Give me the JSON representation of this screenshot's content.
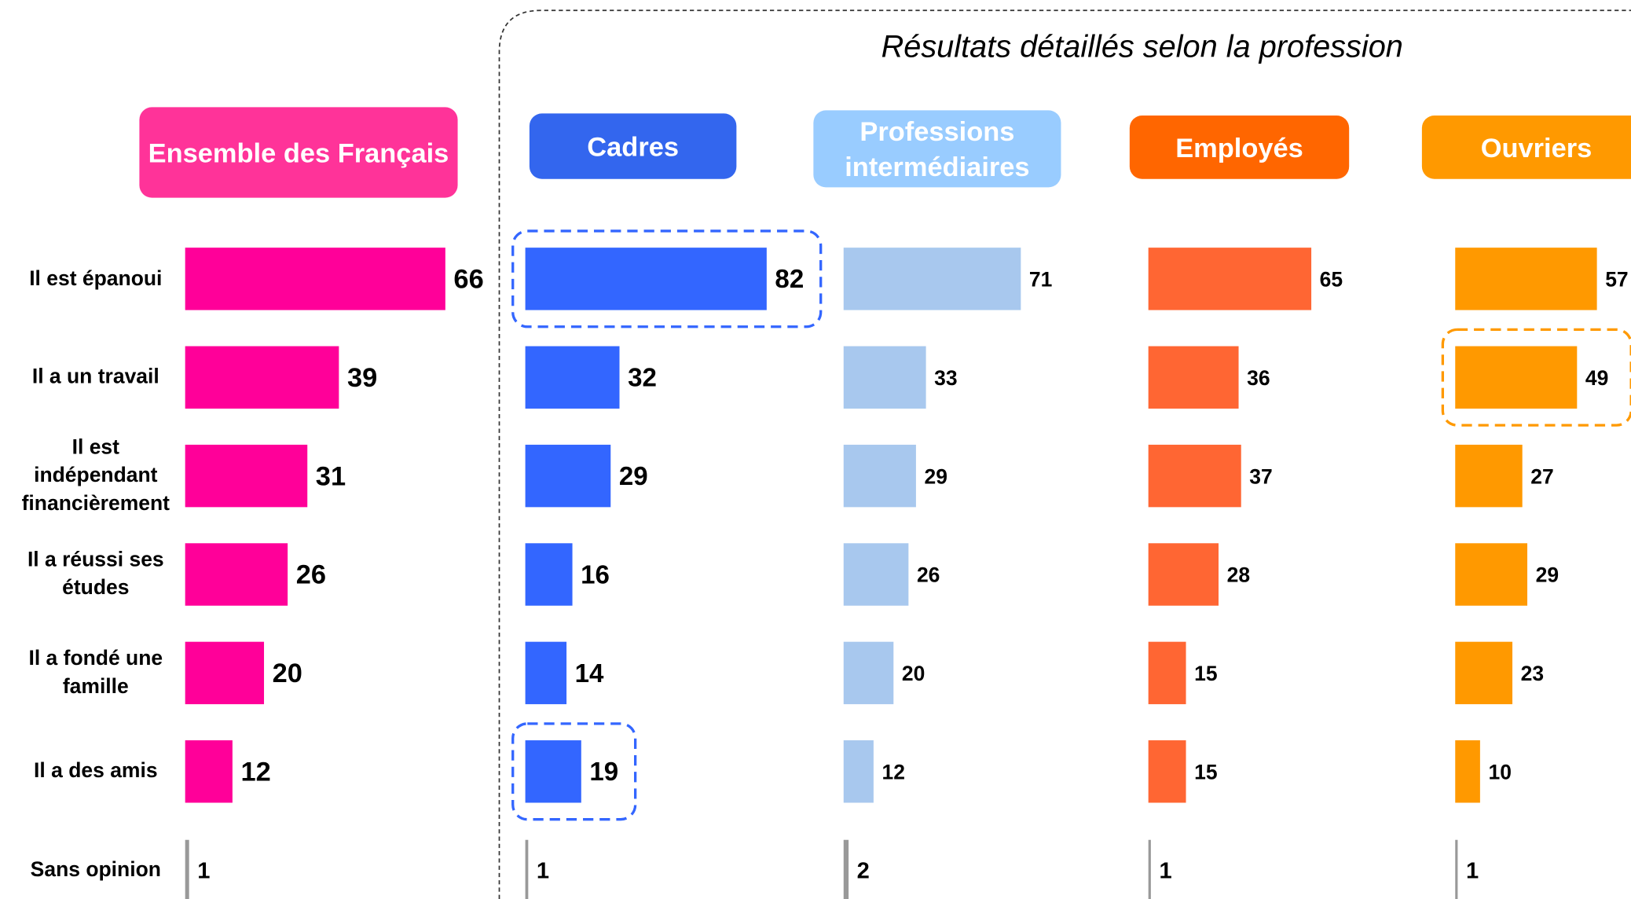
{
  "chart_data": {
    "type": "bar",
    "title": "Résultats détaillés selon la profession",
    "categories": [
      "Il est épanoui",
      "Il a un travail",
      "Il est indépendant financièrement",
      "Il a réussi ses études",
      "Il a fondé une famille",
      "Il a des amis",
      "Sans opinion"
    ],
    "xlim": [
      0,
      100
    ],
    "other_color": "#999999",
    "series": [
      {
        "name": "Ensemble des Français",
        "color": "#ff0099",
        "header_color": "#ff3399",
        "values": [
          66,
          39,
          31,
          26,
          20,
          12,
          1
        ]
      },
      {
        "name": "Cadres",
        "color": "#3366ff",
        "header_color": "#3366ee",
        "values": [
          82,
          32,
          29,
          16,
          14,
          19,
          1
        ],
        "highlight": [
          0,
          5
        ]
      },
      {
        "name": "Professions intermédiaires",
        "color": "#a8c8ee",
        "header_color": "#99ccff",
        "values": [
          71,
          33,
          29,
          26,
          20,
          12,
          2
        ]
      },
      {
        "name": "Employés",
        "color": "#ff6633",
        "header_color": "#ff6600",
        "values": [
          65,
          36,
          37,
          28,
          15,
          15,
          1
        ]
      },
      {
        "name": "Ouvriers",
        "color": "#ff9900",
        "header_color": "#ff9900",
        "values": [
          57,
          49,
          27,
          29,
          23,
          10,
          1
        ],
        "highlight": [
          1
        ]
      }
    ]
  }
}
